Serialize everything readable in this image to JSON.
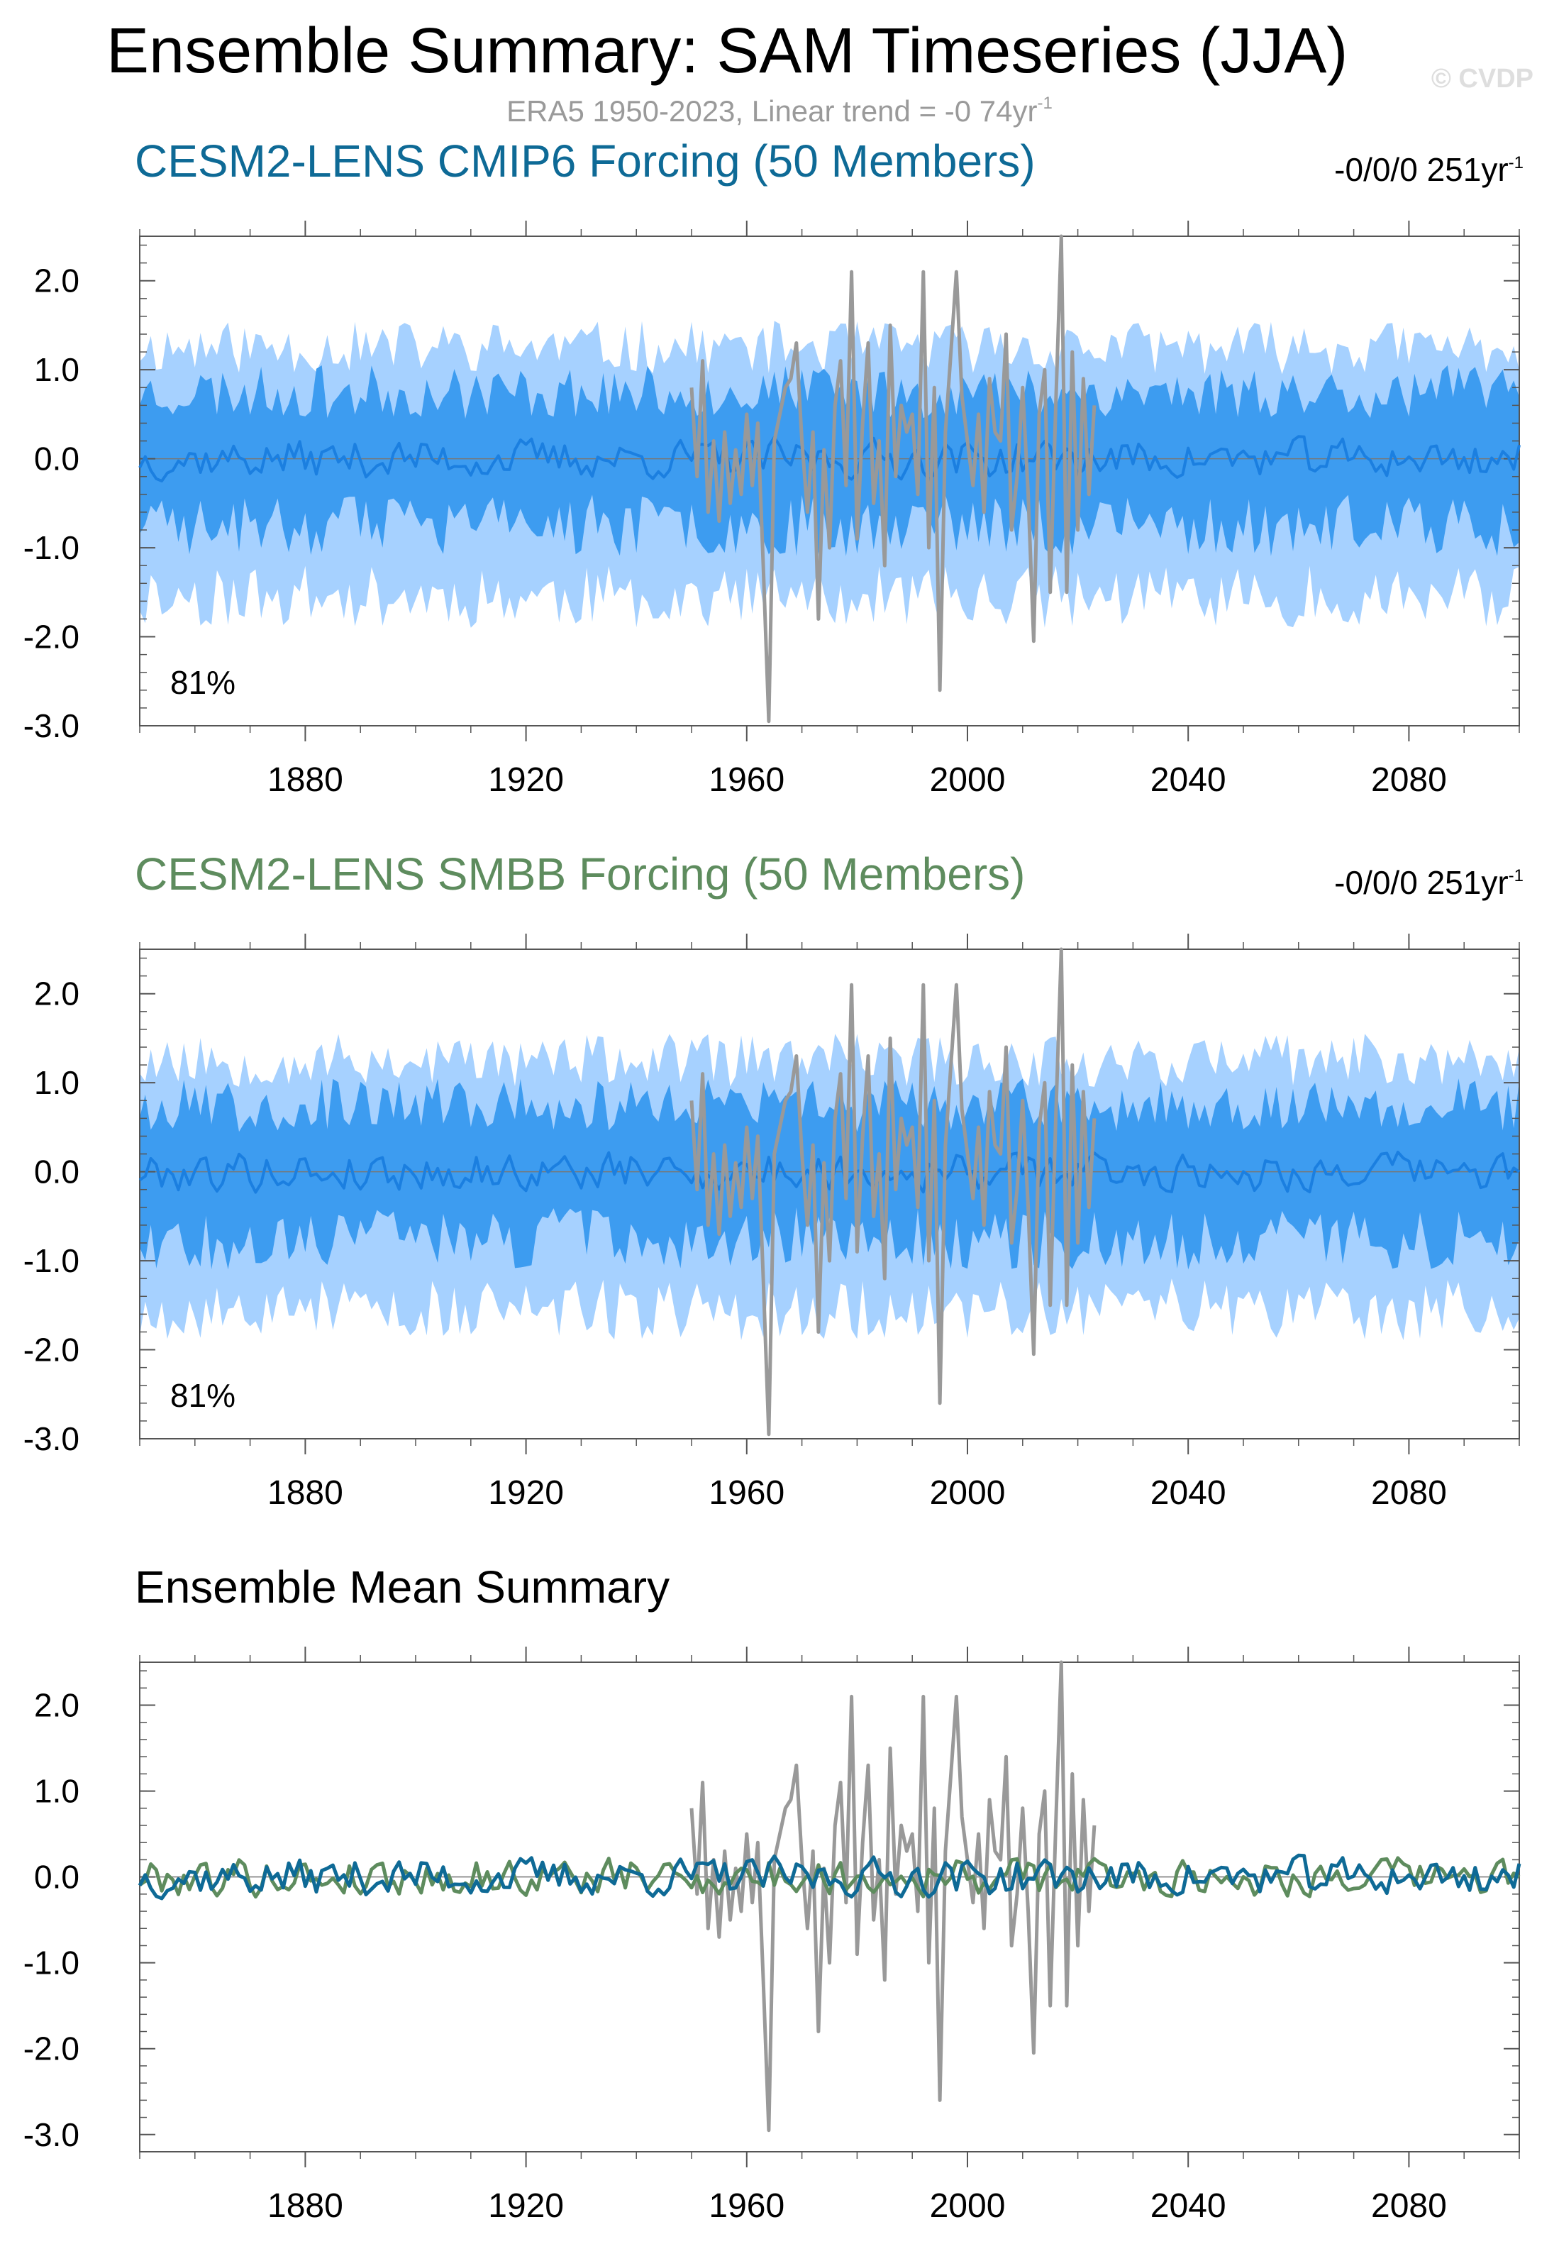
{
  "figure": {
    "title": "Ensemble Summary: SAM Timeseries (JJA)",
    "obs_label": "ERA5 1950-2023, Linear trend = -0 74yr",
    "obs_label_sup": "-1",
    "watermark": "© CVDP",
    "colors": {
      "obs": "#999999",
      "outer_band": "#a6d1ff",
      "inner_band": "#3d9cf0",
      "ens_mean": "#1b7fe0",
      "cmip6": "#0e6a96",
      "smbb": "#5e8c5e",
      "zero": "#777777"
    }
  },
  "panels": [
    {
      "title": "CESM2-LENS CMIP6 Forcing (50 Members)",
      "title_color": "#0e6a96",
      "trend": "-0/0/0 251yr",
      "trend_sup": "-1",
      "percent": "81%"
    },
    {
      "title": "CESM2-LENS SMBB Forcing (50 Members)",
      "title_color": "#5e8c5e",
      "trend": "-0/0/0 251yr",
      "trend_sup": "-1",
      "percent": "81%"
    },
    {
      "title": "Ensemble Mean Summary",
      "title_color": "#000000"
    }
  ],
  "chart_data": [
    {
      "type": "area",
      "title": "CESM2-LENS CMIP6 Forcing (50 Members)",
      "xlim": [
        1850,
        2100
      ],
      "ylim": [
        -3.0,
        2.5
      ],
      "xticks": [
        1880,
        1920,
        1960,
        2000,
        2040,
        2080
      ],
      "xtick_labels": [
        "1880",
        "1920",
        "1960",
        "2000",
        "2040",
        "2080"
      ],
      "yticks": [
        2.0,
        1.0,
        0.0,
        -1.0,
        -2.0,
        -3.0
      ],
      "ytick_labels": [
        "2.0",
        "1.0",
        "0.0",
        "-1.0",
        "-2.0",
        "-3.0"
      ],
      "series": [
        {
          "name": "ensemble 2.5-97.5% range",
          "x_range": [
            1850,
            2100
          ],
          "upper_approx": 1.25,
          "lower_approx": -1.55,
          "seed": 11
        },
        {
          "name": "ensemble 10-90% range",
          "x_range": [
            1850,
            2100
          ],
          "upper_approx": 0.75,
          "lower_approx": -0.75,
          "seed": 23
        },
        {
          "name": "ensemble mean",
          "x_range": [
            1850,
            2100
          ],
          "amplitude": 0.2,
          "seed": 37
        },
        {
          "name": "ERA5 observations",
          "x_range": [
            1950,
            2023
          ]
        }
      ],
      "annotation": "81%"
    },
    {
      "type": "area",
      "title": "CESM2-LENS SMBB Forcing (50 Members)",
      "xlim": [
        1850,
        2100
      ],
      "ylim": [
        -3.0,
        2.5
      ],
      "xticks": [
        1880,
        1920,
        1960,
        2000,
        2040,
        2080
      ],
      "xtick_labels": [
        "1880",
        "1920",
        "1960",
        "2000",
        "2040",
        "2080"
      ],
      "yticks": [
        2.0,
        1.0,
        0.0,
        -1.0,
        -2.0,
        -3.0
      ],
      "ytick_labels": [
        "2.0",
        "1.0",
        "0.0",
        "-1.0",
        "-2.0",
        "-3.0"
      ],
      "series": [
        {
          "name": "ensemble 2.5-97.5% range",
          "x_range": [
            1850,
            2100
          ],
          "upper_approx": 1.25,
          "lower_approx": -1.55,
          "seed": 53
        },
        {
          "name": "ensemble 10-90% range",
          "x_range": [
            1850,
            2100
          ],
          "upper_approx": 0.75,
          "lower_approx": -0.75,
          "seed": 67
        },
        {
          "name": "ensemble mean",
          "x_range": [
            1850,
            2100
          ],
          "amplitude": 0.2,
          "seed": 79
        },
        {
          "name": "ERA5 observations",
          "x_range": [
            1950,
            2023
          ]
        }
      ],
      "annotation": "81%"
    },
    {
      "type": "line",
      "title": "Ensemble Mean Summary",
      "xlim": [
        1850,
        2100
      ],
      "ylim": [
        -3.2,
        2.5
      ],
      "xticks": [
        1880,
        1920,
        1960,
        2000,
        2040,
        2080
      ],
      "xtick_labels": [
        "1880",
        "1920",
        "1960",
        "2000",
        "2040",
        "2080"
      ],
      "yticks": [
        2.0,
        1.0,
        0.0,
        -1.0,
        -2.0,
        -3.0
      ],
      "ytick_labels": [
        "2.0",
        "1.0",
        "0.0",
        "-1.0",
        "-2.0",
        "-3.0"
      ],
      "series": [
        {
          "name": "CMIP6 ensemble mean",
          "x_range": [
            1850,
            2100
          ],
          "amplitude": 0.2,
          "seed": 37
        },
        {
          "name": "SMBB ensemble mean",
          "x_range": [
            1850,
            2100
          ],
          "amplitude": 0.2,
          "seed": 79
        },
        {
          "name": "ERA5 observations",
          "x_range": [
            1950,
            2023
          ]
        }
      ]
    }
  ],
  "obs_series": {
    "years": [
      1950,
      1951,
      1952,
      1953,
      1954,
      1955,
      1956,
      1957,
      1958,
      1959,
      1960,
      1961,
      1962,
      1963,
      1964,
      1965,
      1966,
      1967,
      1968,
      1969,
      1970,
      1971,
      1972,
      1973,
      1974,
      1975,
      1976,
      1977,
      1978,
      1979,
      1980,
      1981,
      1982,
      1983,
      1984,
      1985,
      1986,
      1987,
      1988,
      1989,
      1990,
      1991,
      1992,
      1993,
      1994,
      1995,
      1996,
      1997,
      1998,
      1999,
      2000,
      2001,
      2002,
      2003,
      2004,
      2005,
      2006,
      2007,
      2008,
      2009,
      2010,
      2011,
      2012,
      2013,
      2014,
      2015,
      2016,
      2017,
      2018,
      2019,
      2020,
      2021,
      2022,
      2023
    ],
    "values": [
      0.8,
      -0.2,
      1.1,
      -0.6,
      0.2,
      -0.7,
      0.3,
      -0.5,
      0.1,
      -0.4,
      0.5,
      -0.3,
      0.4,
      -1.2,
      -2.95,
      0.2,
      0.5,
      0.8,
      0.9,
      1.3,
      0.2,
      -0.6,
      0.3,
      -1.8,
      0.1,
      -1.0,
      0.6,
      1.1,
      -0.3,
      2.1,
      -0.9,
      0.4,
      1.3,
      -0.5,
      0.2,
      -1.2,
      1.5,
      -0.2,
      0.6,
      0.3,
      0.5,
      -0.4,
      2.1,
      -1.0,
      0.8,
      -2.6,
      0.3,
      1.2,
      2.1,
      0.7,
      0.2,
      -0.3,
      0.5,
      -0.6,
      0.9,
      0.3,
      0.2,
      1.4,
      -0.8,
      -0.2,
      0.8,
      -0.4,
      -2.05,
      0.5,
      1.0,
      -1.5,
      0.6,
      2.5,
      -1.5,
      1.2,
      -0.8,
      0.9,
      -0.4,
      0.6
    ]
  }
}
